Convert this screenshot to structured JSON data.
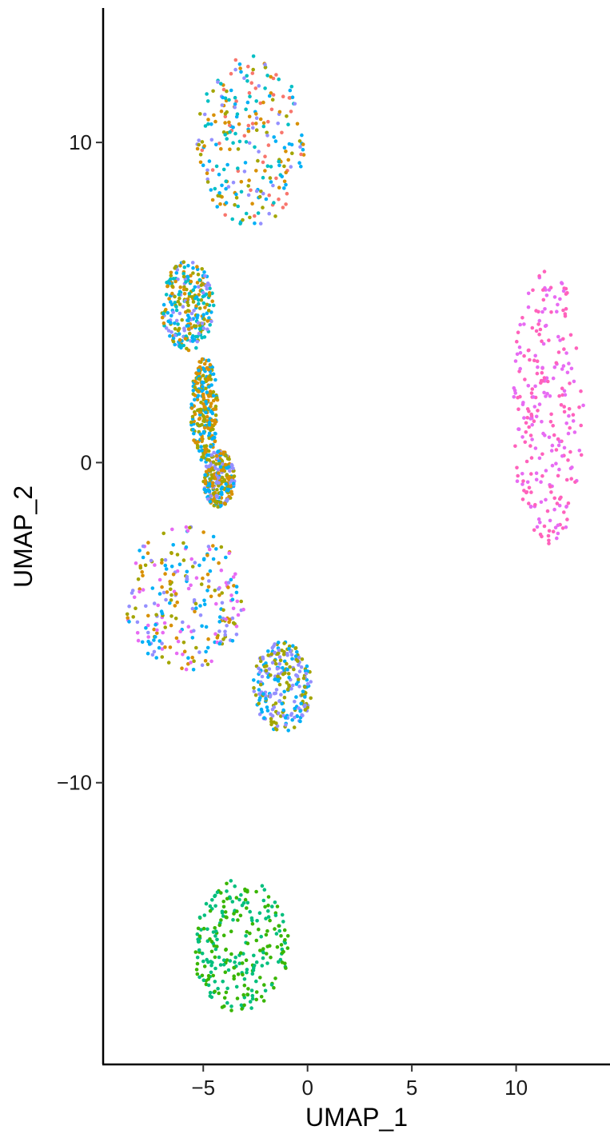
{
  "chart_data": {
    "type": "scatter",
    "title": "",
    "xlabel": "UMAP_1",
    "ylabel": "UMAP_2",
    "xlim": [
      -9.8,
      14.5
    ],
    "ylim": [
      -18.8,
      14.2
    ],
    "x_ticks": [
      -5,
      0,
      5,
      10
    ],
    "y_ticks": [
      -10,
      0,
      10
    ],
    "x_tick_labels": [
      "−5",
      "0",
      "5",
      "10"
    ],
    "y_tick_labels": [
      "−10",
      "0",
      "10"
    ],
    "grid": false,
    "legend": "none",
    "point_colors": {
      "red": "#F8766D",
      "orange": "#D89000",
      "olive": "#A3A500",
      "green": "#39B600",
      "teal_green": "#00BF7D",
      "cyan": "#00BFC4",
      "blue": "#00B0F6",
      "purple": "#9590FF",
      "magenta": "#E76BF3",
      "pink": "#FF62BC"
    },
    "clusters": [
      {
        "region": "top cluster",
        "center": [
          -3.8,
          9.5
        ],
        "x_range": [
          -5.3,
          -0.1
        ],
        "y_range": [
          7.4,
          12.7
        ],
        "colors": [
          "cyan",
          "orange",
          "red",
          "blue",
          "purple",
          "olive"
        ]
      },
      {
        "region": "upper-middle cluster",
        "center": [
          -6.1,
          5.0
        ],
        "x_range": [
          -7.0,
          -4.5
        ],
        "y_range": [
          3.5,
          6.3
        ],
        "colors": [
          "blue",
          "olive",
          "cyan",
          "purple",
          "orange"
        ]
      },
      {
        "region": "bridge",
        "center": [
          -5.0,
          1.5
        ],
        "x_range": [
          -5.6,
          -4.3
        ],
        "y_range": [
          0.0,
          3.3
        ],
        "colors": [
          "olive",
          "blue",
          "orange"
        ]
      },
      {
        "region": "mid-small cluster",
        "center": [
          -4.1,
          -0.6
        ],
        "x_range": [
          -5.0,
          -3.5
        ],
        "y_range": [
          -1.4,
          0.4
        ],
        "colors": [
          "orange",
          "olive",
          "blue",
          "purple"
        ]
      },
      {
        "region": "lower left cluster",
        "center": [
          -6.8,
          -4.8
        ],
        "x_range": [
          -8.8,
          -3.0
        ],
        "y_range": [
          -6.5,
          -2.0
        ],
        "colors": [
          "orange",
          "olive",
          "blue",
          "purple",
          "magenta"
        ]
      },
      {
        "region": "lower right lobe",
        "center": [
          -1.2,
          -7.4
        ],
        "x_range": [
          -2.6,
          0.2
        ],
        "y_range": [
          -8.4,
          -5.6
        ],
        "colors": [
          "blue",
          "olive",
          "purple"
        ]
      },
      {
        "region": "bottom cluster",
        "center": [
          -3.0,
          -16.0
        ],
        "x_range": [
          -5.5,
          -0.9
        ],
        "y_range": [
          -17.2,
          -13.0
        ],
        "colors": [
          "teal_green",
          "green"
        ]
      },
      {
        "region": "right cluster",
        "center": [
          11.7,
          1.5
        ],
        "x_range": [
          9.8,
          13.3
        ],
        "y_range": [
          -2.7,
          6.0
        ],
        "colors": [
          "pink",
          "magenta"
        ]
      }
    ]
  }
}
